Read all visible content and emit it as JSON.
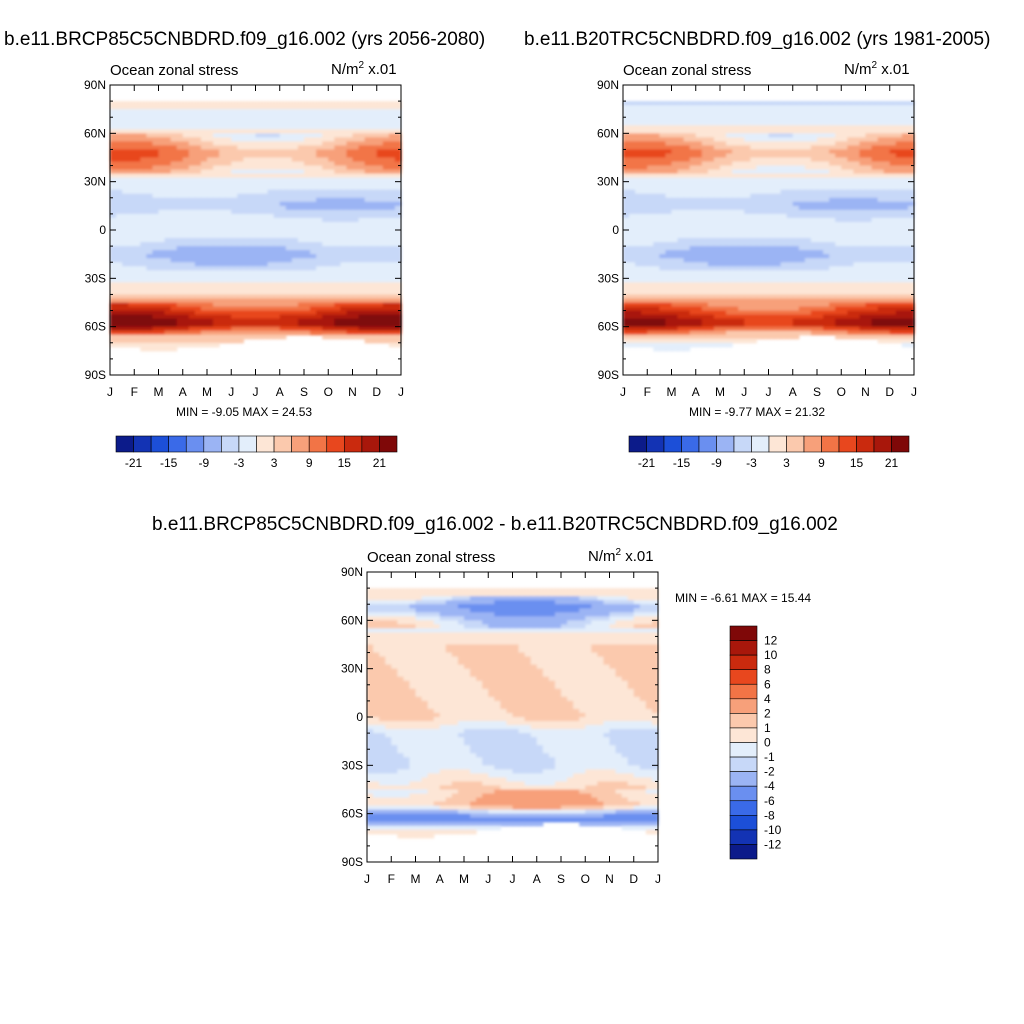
{
  "colors": {
    "blues": [
      "#0c1b8a",
      "#1333b4",
      "#1c4fd8",
      "#3a6ae8",
      "#6a8ff0",
      "#9bb4f4",
      "#c7d8f8",
      "#e3eefb"
    ],
    "reds": [
      "#fde6d6",
      "#fbc9ad",
      "#f7a07a",
      "#f27446",
      "#e8471e",
      "#ca2a0e",
      "#a8170b",
      "#7f0808"
    ],
    "background": "#ffffff"
  },
  "panels": [
    {
      "title": "b.e11.BRCP85C5CNBDRD.f09_g16.002 (yrs 2056-2080)",
      "left_label": "Ocean zonal stress",
      "units_main": "N/m",
      "units_exp": "2",
      "units_scale": " x.01",
      "minmax": "MIN =  -9.05 MAX =  24.53"
    },
    {
      "title": "b.e11.B20TRC5CNBDRD.f09_g16.002 (yrs 1981-2005)",
      "left_label": "Ocean zonal stress",
      "units_main": "N/m",
      "units_exp": "2",
      "units_scale": " x.01",
      "minmax": "MIN =  -9.77 MAX =  21.32"
    },
    {
      "title": "b.e11.BRCP85C5CNBDRD.f09_g16.002 - b.e11.B20TRC5CNBDRD.f09_g16.002",
      "left_label": "Ocean zonal stress",
      "units_main": "N/m",
      "units_exp": "2",
      "units_scale": " x.01",
      "minmax": "MIN =  -6.61 MAX =  15.44"
    }
  ],
  "chart_data": [
    {
      "type": "heatmap",
      "title": "b.e11.BRCP85C5CNBDRD.f09_g16.002 (yrs 2056-2080)",
      "variable": "Ocean zonal stress",
      "units": "N/m2 x.01",
      "x_ticks": [
        "J",
        "F",
        "M",
        "A",
        "M",
        "J",
        "J",
        "A",
        "S",
        "O",
        "N",
        "D",
        "J"
      ],
      "y_ticks": [
        "90N",
        "60N",
        "30N",
        "0",
        "30S",
        "60S",
        "90S"
      ],
      "ylim": [
        -90,
        90
      ],
      "min": -9.05,
      "max": 24.53,
      "colorbar_levels": [
        "-21",
        "-15",
        "-9",
        "-3",
        "3",
        "9",
        "15",
        "21"
      ],
      "colorbar_orientation": "horizontal",
      "lat_profile_mean": [
        {
          "lat": 78,
          "value": 1
        },
        {
          "lat": 70,
          "value": -3
        },
        {
          "lat": 60,
          "value": 1
        },
        {
          "lat": 48,
          "value": 9
        },
        {
          "lat": 40,
          "value": 6
        },
        {
          "lat": 30,
          "value": -1
        },
        {
          "lat": 15,
          "value": -6
        },
        {
          "lat": 5,
          "value": -1
        },
        {
          "lat": -5,
          "value": -2
        },
        {
          "lat": -15,
          "value": -7
        },
        {
          "lat": -25,
          "value": -3
        },
        {
          "lat": -40,
          "value": 3
        },
        {
          "lat": -52,
          "value": 15
        },
        {
          "lat": -58,
          "value": 20
        },
        {
          "lat": -65,
          "value": 6
        },
        {
          "lat": -72,
          "value": 1
        }
      ]
    },
    {
      "type": "heatmap",
      "title": "b.e11.B20TRC5CNBDRD.f09_g16.002 (yrs 1981-2005)",
      "variable": "Ocean zonal stress",
      "units": "N/m2 x.01",
      "x_ticks": [
        "J",
        "F",
        "M",
        "A",
        "M",
        "J",
        "J",
        "A",
        "S",
        "O",
        "N",
        "D",
        "J"
      ],
      "y_ticks": [
        "90N",
        "60N",
        "30N",
        "0",
        "30S",
        "60S",
        "90S"
      ],
      "ylim": [
        -90,
        90
      ],
      "min": -9.77,
      "max": 21.32,
      "colorbar_levels": [
        "-21",
        "-15",
        "-9",
        "-3",
        "3",
        "9",
        "15",
        "21"
      ],
      "colorbar_orientation": "horizontal",
      "lat_profile_mean": [
        {
          "lat": 78,
          "value": -3
        },
        {
          "lat": 70,
          "value": -1
        },
        {
          "lat": 60,
          "value": 1
        },
        {
          "lat": 48,
          "value": 9
        },
        {
          "lat": 40,
          "value": 5
        },
        {
          "lat": 30,
          "value": -1
        },
        {
          "lat": 15,
          "value": -6
        },
        {
          "lat": 5,
          "value": -1
        },
        {
          "lat": -5,
          "value": -2
        },
        {
          "lat": -15,
          "value": -7
        },
        {
          "lat": -25,
          "value": -3
        },
        {
          "lat": -40,
          "value": 3
        },
        {
          "lat": -52,
          "value": 13
        },
        {
          "lat": -58,
          "value": 18
        },
        {
          "lat": -65,
          "value": 4
        },
        {
          "lat": -72,
          "value": -1
        }
      ]
    },
    {
      "type": "heatmap",
      "title": "b.e11.BRCP85C5CNBDRD.f09_g16.002 - b.e11.B20TRC5CNBDRD.f09_g16.002",
      "variable": "Ocean zonal stress",
      "units": "N/m2 x.01",
      "x_ticks": [
        "J",
        "F",
        "M",
        "A",
        "M",
        "J",
        "J",
        "A",
        "S",
        "O",
        "N",
        "D",
        "J"
      ],
      "y_ticks": [
        "90N",
        "60N",
        "30N",
        "0",
        "30S",
        "60S",
        "90S"
      ],
      "ylim": [
        -90,
        90
      ],
      "min": -6.61,
      "max": 15.44,
      "colorbar_levels": [
        "12",
        "10",
        "8",
        "6",
        "4",
        "2",
        "1",
        "0",
        "-1",
        "-2",
        "-4",
        "-6",
        "-8",
        "-10",
        "-12"
      ],
      "colorbar_orientation": "vertical",
      "lat_profile_mean": [
        {
          "lat": 78,
          "value": 1
        },
        {
          "lat": 68,
          "value": -4
        },
        {
          "lat": 60,
          "value": -1
        },
        {
          "lat": 45,
          "value": 1
        },
        {
          "lat": 30,
          "value": 1
        },
        {
          "lat": 15,
          "value": 1
        },
        {
          "lat": 0,
          "value": 1
        },
        {
          "lat": -10,
          "value": -1
        },
        {
          "lat": -30,
          "value": -1
        },
        {
          "lat": -45,
          "value": 1
        },
        {
          "lat": -55,
          "value": 2
        },
        {
          "lat": -63,
          "value": -6
        },
        {
          "lat": -70,
          "value": 1
        }
      ]
    }
  ]
}
